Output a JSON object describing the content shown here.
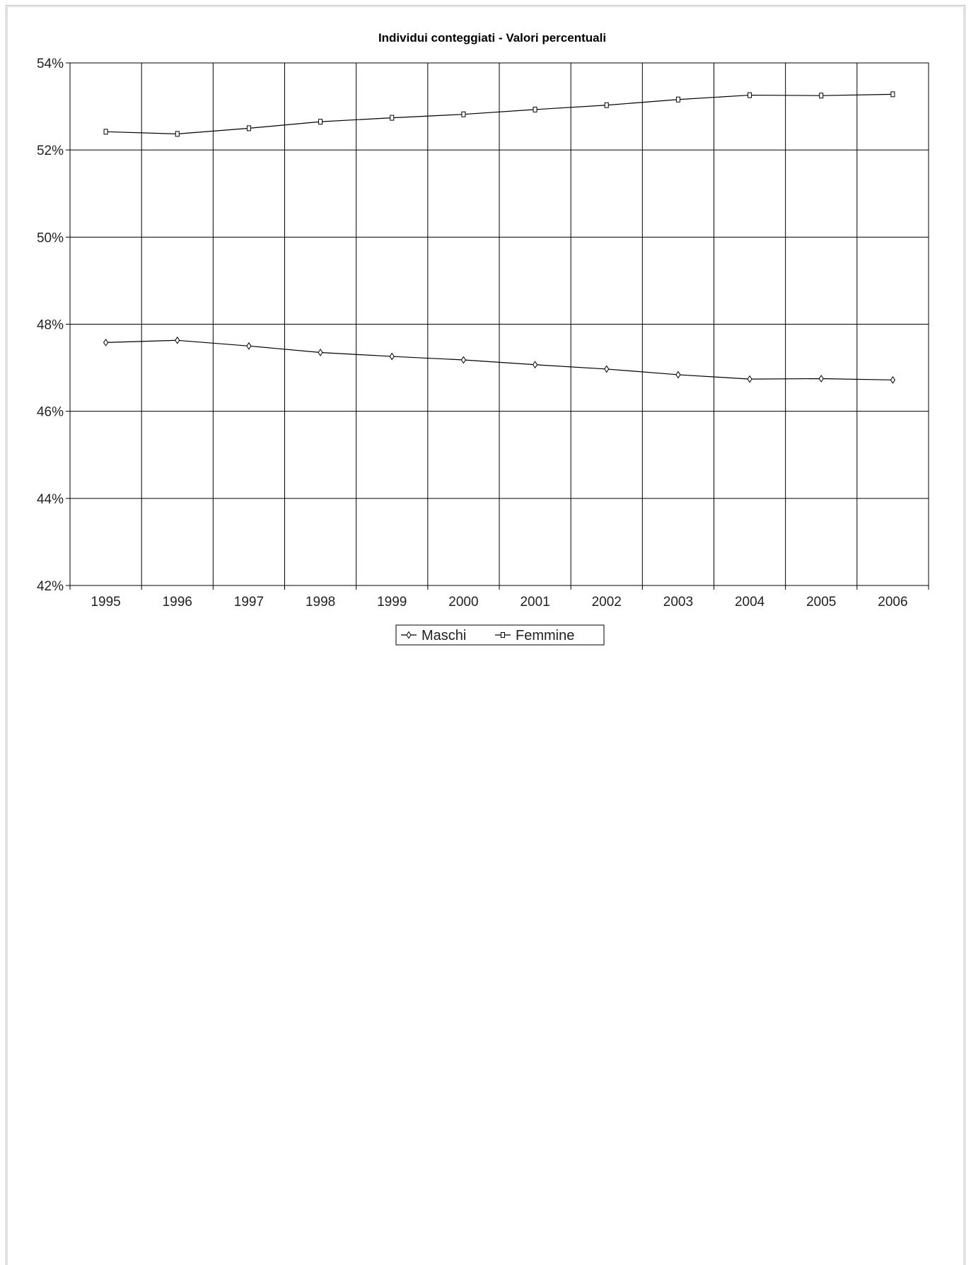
{
  "chart_data": {
    "type": "line",
    "title": "Individui conteggiati - Valori percentuali",
    "xlabel": "",
    "ylabel": "",
    "x": [
      "1995",
      "1996",
      "1997",
      "1998",
      "1999",
      "2000",
      "2001",
      "2002",
      "2003",
      "2004",
      "2005",
      "2006"
    ],
    "y_ticks": [
      "42%",
      "44%",
      "46%",
      "48%",
      "50%",
      "52%",
      "54%"
    ],
    "ylim": [
      42,
      54
    ],
    "grid": true,
    "legend_position": "bottom",
    "series": [
      {
        "name": "Maschi",
        "marker": "diamond",
        "values": [
          47.58,
          47.63,
          47.5,
          47.35,
          47.26,
          47.18,
          47.07,
          46.97,
          46.84,
          46.74,
          46.75,
          46.72
        ]
      },
      {
        "name": "Femmine",
        "marker": "square",
        "values": [
          52.42,
          52.37,
          52.5,
          52.65,
          52.74,
          52.82,
          52.93,
          53.03,
          53.16,
          53.26,
          53.25,
          53.28
        ]
      }
    ],
    "colors": {
      "line": "#000000",
      "grid": "#000000",
      "marker_fill": "#ffffff"
    }
  }
}
